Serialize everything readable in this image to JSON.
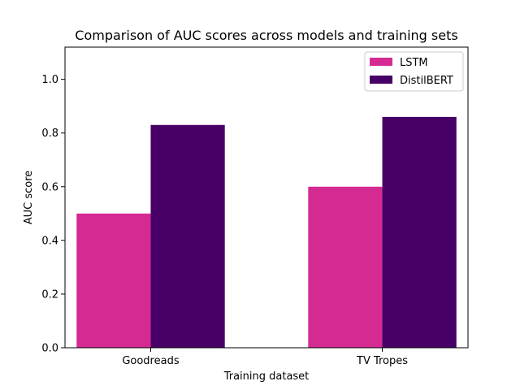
{
  "chart_data": {
    "type": "bar",
    "title": "Comparison of AUC scores across models and training sets",
    "xlabel": "Training dataset",
    "ylabel": "AUC score",
    "categories": [
      "Goodreads",
      "TV Tropes"
    ],
    "series": [
      {
        "name": "LSTM",
        "values": [
          0.5,
          0.6
        ],
        "color": "#d62a93"
      },
      {
        "name": "DistilBERT",
        "values": [
          0.83,
          0.86
        ],
        "color": "#470066"
      }
    ],
    "ylim": [
      0,
      1.12
    ],
    "yticks": [
      "0.0",
      "0.2",
      "0.4",
      "0.6",
      "0.8",
      "1.0"
    ],
    "grid": false,
    "legend_position": "top-right"
  }
}
